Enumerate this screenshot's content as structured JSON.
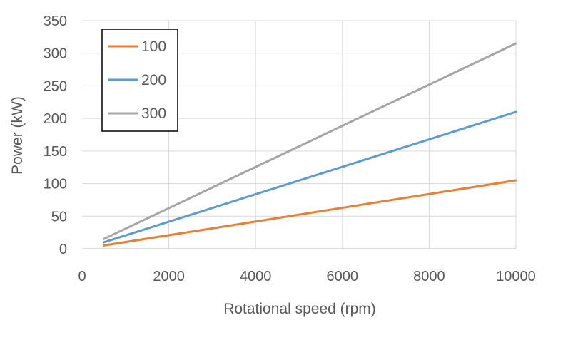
{
  "chart_data": {
    "type": "line",
    "title": "",
    "xlabel": "Rotational speed  (rpm)",
    "ylabel": "Power  (kW)",
    "xlim": [
      0,
      10000
    ],
    "ylim": [
      0,
      350
    ],
    "x_ticks": [
      0,
      2000,
      4000,
      6000,
      8000,
      10000
    ],
    "y_ticks": [
      0,
      50,
      100,
      150,
      200,
      250,
      300,
      350
    ],
    "grid": true,
    "legend_position": "top-left",
    "series": [
      {
        "name": "100",
        "color": "#ED7D31",
        "x": [
          500,
          10000
        ],
        "y": [
          5,
          105
        ]
      },
      {
        "name": "200",
        "color": "#5B9BD5",
        "x": [
          500,
          10000
        ],
        "y": [
          10,
          210
        ]
      },
      {
        "name": "300",
        "color": "#A5A5A5",
        "x": [
          500,
          10000
        ],
        "y": [
          15,
          315
        ]
      }
    ]
  }
}
